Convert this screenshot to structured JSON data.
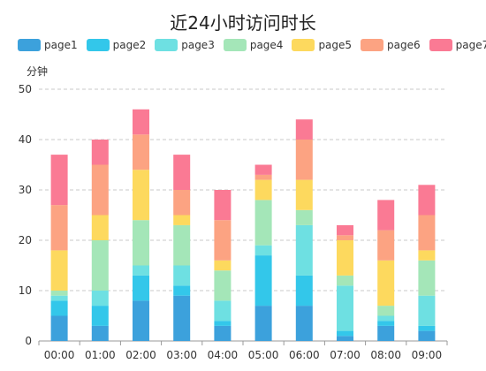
{
  "chart_data": {
    "type": "bar",
    "stacked": true,
    "title": "近24小时访问时长",
    "ylabel": "分钟",
    "xlabel": "",
    "ylim": [
      0,
      50
    ],
    "yticks": [
      0,
      10,
      20,
      30,
      40,
      50
    ],
    "grid": "horizontal-dashed",
    "legend_position": "top",
    "categories": [
      "00:00",
      "01:00",
      "02:00",
      "03:00",
      "04:00",
      "05:00",
      "06:00",
      "07:00",
      "08:00",
      "09:00"
    ],
    "series": [
      {
        "name": "page1",
        "color": "#3ca1dc",
        "values": [
          5,
          3,
          8,
          9,
          3,
          7,
          7,
          1,
          3,
          2
        ]
      },
      {
        "name": "page2",
        "color": "#33c7ea",
        "values": [
          3,
          4,
          5,
          2,
          1,
          10,
          6,
          1,
          1,
          1
        ]
      },
      {
        "name": "page3",
        "color": "#6ee0e2",
        "values": [
          1,
          3,
          2,
          4,
          4,
          2,
          10,
          9,
          1,
          6
        ]
      },
      {
        "name": "page4",
        "color": "#a4e6b8",
        "values": [
          1,
          10,
          9,
          8,
          6,
          9,
          3,
          2,
          2,
          7
        ]
      },
      {
        "name": "page5",
        "color": "#fdd95e",
        "values": [
          8,
          5,
          10,
          2,
          2,
          4,
          6,
          7,
          9,
          2
        ]
      },
      {
        "name": "page6",
        "color": "#fca382",
        "values": [
          9,
          10,
          7,
          5,
          8,
          1,
          8,
          1,
          6,
          7
        ]
      },
      {
        "name": "page7",
        "color": "#fa7a94",
        "values": [
          10,
          5,
          5,
          7,
          6,
          2,
          4,
          2,
          6,
          6
        ]
      }
    ]
  }
}
